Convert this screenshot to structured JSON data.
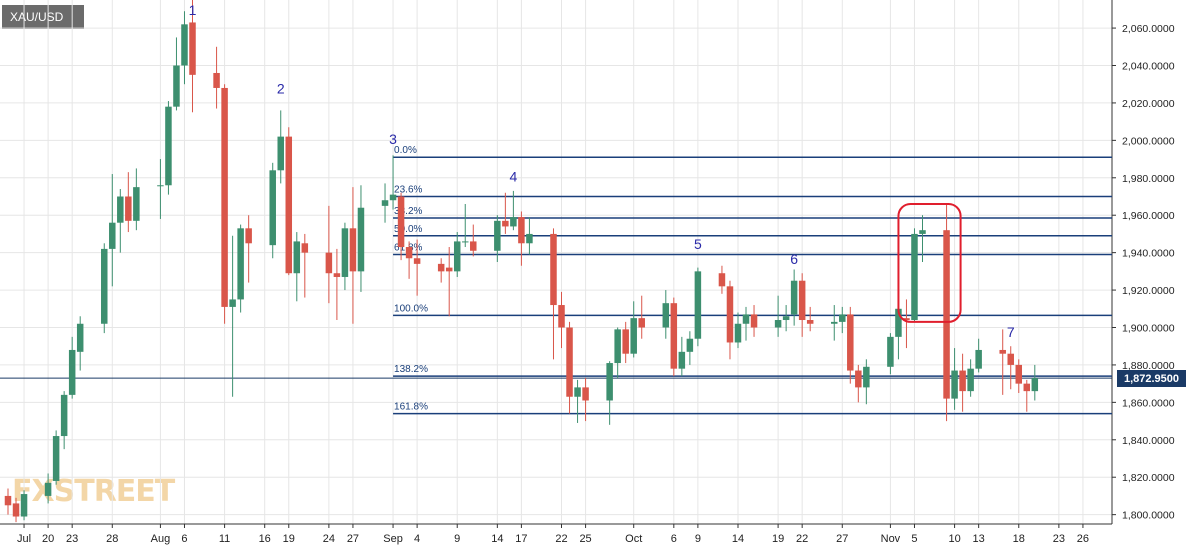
{
  "symbol": "XAU/USD",
  "watermark": "FXSTREET",
  "colors": {
    "bull": "#3d8f6f",
    "bear": "#d9564a",
    "fib": "#1a3f7a",
    "wave_label": "#2a2aa8",
    "price_line": "#1a3a66",
    "highlight": "#e01e2d",
    "grid": "#e6e6e6"
  },
  "chart_data": {
    "type": "candlestick",
    "title": "XAU/USD",
    "y_range": [
      1795,
      2075
    ],
    "y_ticks": [
      1800,
      1820,
      1840,
      1860,
      1880,
      1900,
      1920,
      1940,
      1960,
      1980,
      2000,
      2020,
      2040,
      2060
    ],
    "y_tick_labels": [
      "1,800.0000",
      "1,820.0000",
      "1,840.0000",
      "1,860.0000",
      "1,880.0000",
      "1,900.0000",
      "1,920.0000",
      "1,940.0000",
      "1,960.0000",
      "1,980.0000",
      "2,000.0000",
      "2,020.0000",
      "2,040.0000",
      "2,060.0000"
    ],
    "x_range": [
      "2020-07-15",
      "2020-11-29"
    ],
    "x_ticks": [
      {
        "date": "2020-07-17",
        "label": "Jul"
      },
      {
        "date": "2020-07-20",
        "label": "20"
      },
      {
        "date": "2020-07-23",
        "label": "23"
      },
      {
        "date": "2020-07-28",
        "label": "28"
      },
      {
        "date": "2020-08-03",
        "label": "Aug"
      },
      {
        "date": "2020-08-06",
        "label": "6"
      },
      {
        "date": "2020-08-11",
        "label": "11"
      },
      {
        "date": "2020-08-16",
        "label": "16"
      },
      {
        "date": "2020-08-19",
        "label": "19"
      },
      {
        "date": "2020-08-24",
        "label": "24"
      },
      {
        "date": "2020-08-27",
        "label": "27"
      },
      {
        "date": "2020-09-01",
        "label": "Sep"
      },
      {
        "date": "2020-09-04",
        "label": "4"
      },
      {
        "date": "2020-09-09",
        "label": "9"
      },
      {
        "date": "2020-09-14",
        "label": "14"
      },
      {
        "date": "2020-09-17",
        "label": "17"
      },
      {
        "date": "2020-09-22",
        "label": "22"
      },
      {
        "date": "2020-09-25",
        "label": "25"
      },
      {
        "date": "2020-10-01",
        "label": "Oct"
      },
      {
        "date": "2020-10-06",
        "label": "6"
      },
      {
        "date": "2020-10-09",
        "label": "9"
      },
      {
        "date": "2020-10-14",
        "label": "14"
      },
      {
        "date": "2020-10-19",
        "label": "19"
      },
      {
        "date": "2020-10-22",
        "label": "22"
      },
      {
        "date": "2020-10-27",
        "label": "27"
      },
      {
        "date": "2020-11-02",
        "label": "Nov"
      },
      {
        "date": "2020-11-05",
        "label": "5"
      },
      {
        "date": "2020-11-10",
        "label": "10"
      },
      {
        "date": "2020-11-13",
        "label": "13"
      },
      {
        "date": "2020-11-18",
        "label": "18"
      },
      {
        "date": "2020-11-23",
        "label": "23"
      },
      {
        "date": "2020-11-26",
        "label": "26"
      }
    ],
    "last_price": 1872.95,
    "last_price_label": "1,872.9500",
    "candles": [
      {
        "d": "2020-07-15",
        "o": 1810,
        "h": 1814,
        "l": 1800,
        "c": 1805
      },
      {
        "d": "2020-07-16",
        "o": 1806,
        "h": 1809,
        "l": 1796,
        "c": 1799
      },
      {
        "d": "2020-07-17",
        "o": 1799,
        "h": 1813,
        "l": 1797,
        "c": 1811
      },
      {
        "d": "2020-07-20",
        "o": 1810,
        "h": 1822,
        "l": 1806,
        "c": 1817
      },
      {
        "d": "2020-07-21",
        "o": 1818,
        "h": 1845,
        "l": 1816,
        "c": 1842
      },
      {
        "d": "2020-07-22",
        "o": 1842,
        "h": 1866,
        "l": 1835,
        "c": 1864
      },
      {
        "d": "2020-07-23",
        "o": 1864,
        "h": 1895,
        "l": 1862,
        "c": 1888
      },
      {
        "d": "2020-07-24",
        "o": 1887,
        "h": 1906,
        "l": 1877,
        "c": 1902
      },
      {
        "d": "2020-07-27",
        "o": 1902,
        "h": 1945,
        "l": 1897,
        "c": 1942
      },
      {
        "d": "2020-07-28",
        "o": 1942,
        "h": 1982,
        "l": 1922,
        "c": 1956
      },
      {
        "d": "2020-07-29",
        "o": 1956,
        "h": 1974,
        "l": 1940,
        "c": 1970
      },
      {
        "d": "2020-07-30",
        "o": 1970,
        "h": 1983,
        "l": 1951,
        "c": 1957
      },
      {
        "d": "2020-07-31",
        "o": 1957,
        "h": 1985,
        "l": 1952,
        "c": 1975
      },
      {
        "d": "2020-08-03",
        "o": 1976,
        "h": 1990,
        "l": 1958,
        "c": 1976
      },
      {
        "d": "2020-08-04",
        "o": 1976,
        "h": 2021,
        "l": 1971,
        "c": 2018
      },
      {
        "d": "2020-08-05",
        "o": 2018,
        "h": 2055,
        "l": 2016,
        "c": 2040
      },
      {
        "d": "2020-08-06",
        "o": 2040,
        "h": 2069,
        "l": 2030,
        "c": 2062
      },
      {
        "d": "2020-08-07",
        "o": 2063,
        "h": 2075,
        "l": 2015,
        "c": 2035
      },
      {
        "d": "2020-08-10",
        "o": 2036,
        "h": 2050,
        "l": 2017,
        "c": 2028
      },
      {
        "d": "2020-08-11",
        "o": 2028,
        "h": 2030,
        "l": 1902,
        "c": 1911
      },
      {
        "d": "2020-08-12",
        "o": 1911,
        "h": 1949,
        "l": 1863,
        "c": 1915
      },
      {
        "d": "2020-08-13",
        "o": 1915,
        "h": 1955,
        "l": 1908,
        "c": 1953
      },
      {
        "d": "2020-08-14",
        "o": 1953,
        "h": 1960,
        "l": 1924,
        "c": 1945
      },
      {
        "d": "2020-08-17",
        "o": 1944,
        "h": 1988,
        "l": 1937,
        "c": 1984
      },
      {
        "d": "2020-08-18",
        "o": 1984,
        "h": 2016,
        "l": 1977,
        "c": 2002
      },
      {
        "d": "2020-08-19",
        "o": 2002,
        "h": 2007,
        "l": 1928,
        "c": 1929
      },
      {
        "d": "2020-08-20",
        "o": 1929,
        "h": 1951,
        "l": 1914,
        "c": 1946
      },
      {
        "d": "2020-08-21",
        "o": 1945,
        "h": 1950,
        "l": 1916,
        "c": 1940
      },
      {
        "d": "2020-08-24",
        "o": 1940,
        "h": 1965,
        "l": 1913,
        "c": 1929
      },
      {
        "d": "2020-08-25",
        "o": 1929,
        "h": 1942,
        "l": 1904,
        "c": 1927
      },
      {
        "d": "2020-08-26",
        "o": 1927,
        "h": 1956,
        "l": 1920,
        "c": 1953
      },
      {
        "d": "2020-08-27",
        "o": 1953,
        "h": 1975,
        "l": 1902,
        "c": 1930
      },
      {
        "d": "2020-08-28",
        "o": 1930,
        "h": 1976,
        "l": 1919,
        "c": 1964
      },
      {
        "d": "2020-08-31",
        "o": 1965,
        "h": 1977,
        "l": 1956,
        "c": 1968
      },
      {
        "d": "2020-09-01",
        "o": 1968,
        "h": 1992,
        "l": 1963,
        "c": 1971
      },
      {
        "d": "2020-09-02",
        "o": 1970,
        "h": 1972,
        "l": 1936,
        "c": 1943
      },
      {
        "d": "2020-09-03",
        "o": 1943,
        "h": 1946,
        "l": 1926,
        "c": 1937
      },
      {
        "d": "2020-09-04",
        "o": 1937,
        "h": 1947,
        "l": 1917,
        "c": 1934
      },
      {
        "d": "2020-09-07",
        "o": 1934,
        "h": 1937,
        "l": 1924,
        "c": 1930
      },
      {
        "d": "2020-09-08",
        "o": 1932,
        "h": 1943,
        "l": 1906,
        "c": 1930
      },
      {
        "d": "2020-09-09",
        "o": 1930,
        "h": 1951,
        "l": 1927,
        "c": 1946
      },
      {
        "d": "2020-09-10",
        "o": 1946,
        "h": 1966,
        "l": 1943,
        "c": 1946
      },
      {
        "d": "2020-09-11",
        "o": 1946,
        "h": 1955,
        "l": 1938,
        "c": 1941
      },
      {
        "d": "2020-09-14",
        "o": 1941,
        "h": 1960,
        "l": 1935,
        "c": 1957
      },
      {
        "d": "2020-09-15",
        "o": 1957,
        "h": 1972,
        "l": 1950,
        "c": 1954
      },
      {
        "d": "2020-09-16",
        "o": 1954,
        "h": 1973,
        "l": 1952,
        "c": 1959
      },
      {
        "d": "2020-09-17",
        "o": 1959,
        "h": 1962,
        "l": 1933,
        "c": 1945
      },
      {
        "d": "2020-09-18",
        "o": 1945,
        "h": 1959,
        "l": 1939,
        "c": 1950
      },
      {
        "d": "2020-09-21",
        "o": 1950,
        "h": 1953,
        "l": 1883,
        "c": 1912
      },
      {
        "d": "2020-09-22",
        "o": 1912,
        "h": 1919,
        "l": 1889,
        "c": 1900
      },
      {
        "d": "2020-09-23",
        "o": 1900,
        "h": 1903,
        "l": 1854,
        "c": 1863
      },
      {
        "d": "2020-09-24",
        "o": 1863,
        "h": 1872,
        "l": 1849,
        "c": 1868
      },
      {
        "d": "2020-09-25",
        "o": 1868,
        "h": 1873,
        "l": 1850,
        "c": 1861
      },
      {
        "d": "2020-09-28",
        "o": 1861,
        "h": 1882,
        "l": 1848,
        "c": 1881
      },
      {
        "d": "2020-09-29",
        "o": 1881,
        "h": 1900,
        "l": 1873,
        "c": 1899
      },
      {
        "d": "2020-09-30",
        "o": 1899,
        "h": 1903,
        "l": 1881,
        "c": 1886
      },
      {
        "d": "2020-10-01",
        "o": 1886,
        "h": 1914,
        "l": 1884,
        "c": 1905
      },
      {
        "d": "2020-10-02",
        "o": 1905,
        "h": 1917,
        "l": 1894,
        "c": 1900
      },
      {
        "d": "2020-10-05",
        "o": 1900,
        "h": 1920,
        "l": 1894,
        "c": 1913
      },
      {
        "d": "2020-10-06",
        "o": 1913,
        "h": 1916,
        "l": 1874,
        "c": 1878
      },
      {
        "d": "2020-10-07",
        "o": 1878,
        "h": 1895,
        "l": 1874,
        "c": 1887
      },
      {
        "d": "2020-10-08",
        "o": 1887,
        "h": 1898,
        "l": 1880,
        "c": 1894
      },
      {
        "d": "2020-10-09",
        "o": 1894,
        "h": 1932,
        "l": 1890,
        "c": 1930
      },
      {
        "d": "2020-10-12",
        "o": 1929,
        "h": 1933,
        "l": 1918,
        "c": 1922
      },
      {
        "d": "2020-10-13",
        "o": 1922,
        "h": 1925,
        "l": 1883,
        "c": 1892
      },
      {
        "d": "2020-10-14",
        "o": 1892,
        "h": 1908,
        "l": 1889,
        "c": 1902
      },
      {
        "d": "2020-10-15",
        "o": 1902,
        "h": 1911,
        "l": 1893,
        "c": 1907
      },
      {
        "d": "2020-10-16",
        "o": 1907,
        "h": 1912,
        "l": 1895,
        "c": 1900
      },
      {
        "d": "2020-10-19",
        "o": 1900,
        "h": 1917,
        "l": 1895,
        "c": 1904
      },
      {
        "d": "2020-10-20",
        "o": 1904,
        "h": 1912,
        "l": 1898,
        "c": 1906
      },
      {
        "d": "2020-10-21",
        "o": 1907,
        "h": 1931,
        "l": 1901,
        "c": 1925
      },
      {
        "d": "2020-10-22",
        "o": 1925,
        "h": 1929,
        "l": 1895,
        "c": 1904
      },
      {
        "d": "2020-10-23",
        "o": 1904,
        "h": 1911,
        "l": 1898,
        "c": 1902
      },
      {
        "d": "2020-10-26",
        "o": 1902,
        "h": 1912,
        "l": 1893,
        "c": 1903
      },
      {
        "d": "2020-10-27",
        "o": 1903,
        "h": 1911,
        "l": 1897,
        "c": 1907
      },
      {
        "d": "2020-10-28",
        "o": 1907,
        "h": 1911,
        "l": 1870,
        "c": 1877
      },
      {
        "d": "2020-10-29",
        "o": 1877,
        "h": 1880,
        "l": 1860,
        "c": 1868
      },
      {
        "d": "2020-10-30",
        "o": 1868,
        "h": 1883,
        "l": 1859,
        "c": 1879
      },
      {
        "d": "2020-11-02",
        "o": 1879,
        "h": 1897,
        "l": 1875,
        "c": 1895
      },
      {
        "d": "2020-11-03",
        "o": 1895,
        "h": 1911,
        "l": 1883,
        "c": 1910
      },
      {
        "d": "2020-11-04",
        "o": 1905,
        "h": 1915,
        "l": 1889,
        "c": 1904
      },
      {
        "d": "2020-11-05",
        "o": 1904,
        "h": 1953,
        "l": 1903,
        "c": 1950
      },
      {
        "d": "2020-11-06",
        "o": 1950,
        "h": 1960,
        "l": 1935,
        "c": 1952
      },
      {
        "d": "2020-11-09",
        "o": 1952,
        "h": 1966,
        "l": 1850,
        "c": 1862
      },
      {
        "d": "2020-11-10",
        "o": 1862,
        "h": 1889,
        "l": 1856,
        "c": 1877
      },
      {
        "d": "2020-11-11",
        "o": 1877,
        "h": 1886,
        "l": 1855,
        "c": 1866
      },
      {
        "d": "2020-11-12",
        "o": 1866,
        "h": 1883,
        "l": 1863,
        "c": 1878
      },
      {
        "d": "2020-11-13",
        "o": 1878,
        "h": 1894,
        "l": 1876,
        "c": 1888
      },
      {
        "d": "2020-11-16",
        "o": 1888,
        "h": 1899,
        "l": 1864,
        "c": 1886
      },
      {
        "d": "2020-11-17",
        "o": 1886,
        "h": 1890,
        "l": 1867,
        "c": 1880
      },
      {
        "d": "2020-11-18",
        "o": 1880,
        "h": 1883,
        "l": 1865,
        "c": 1870
      },
      {
        "d": "2020-11-19",
        "o": 1870,
        "h": 1872,
        "l": 1855,
        "c": 1866
      },
      {
        "d": "2020-11-20",
        "o": 1866,
        "h": 1880,
        "l": 1861,
        "c": 1873
      }
    ],
    "fib_levels": [
      {
        "label": "0.0%",
        "value": 1991
      },
      {
        "label": "23.6%",
        "value": 1970
      },
      {
        "label": "38.2%",
        "value": 1958.5
      },
      {
        "label": "50.0%",
        "value": 1949
      },
      {
        "label": "61.8%",
        "value": 1939
      },
      {
        "label": "100.0%",
        "value": 1906.5
      },
      {
        "label": "138.2%",
        "value": 1874
      },
      {
        "label": "161.8%",
        "value": 1854
      }
    ],
    "fib_start_date": "2020-09-01",
    "wave_labels": [
      {
        "label": "1",
        "date": "2020-08-07",
        "price": 2067
      },
      {
        "label": "2",
        "date": "2020-08-18",
        "price": 2025
      },
      {
        "label": "3",
        "date": "2020-09-01",
        "price": 1998
      },
      {
        "label": "4",
        "date": "2020-09-16",
        "price": 1978
      },
      {
        "label": "5",
        "date": "2020-10-09",
        "price": 1942
      },
      {
        "label": "6",
        "date": "2020-10-21",
        "price": 1934
      },
      {
        "label": "7",
        "date": "2020-11-17",
        "price": 1895
      }
    ],
    "highlight_box": {
      "from": "2020-11-04",
      "to": "2020-11-10",
      "low": 1903,
      "high": 1966
    }
  }
}
